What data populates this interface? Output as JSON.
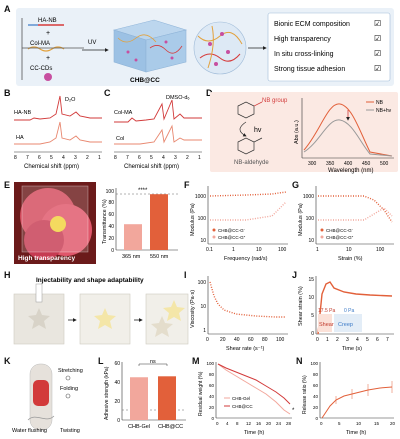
{
  "panels": {
    "A": {
      "label": "A",
      "reagents": [
        "HA-NB",
        "Col-MA",
        "CC-CDs"
      ],
      "plus": "+",
      "uv": "UV",
      "product": "CHB@CC",
      "features": [
        "Bionic ECM composition",
        "High transparency",
        "In situ cross-linking",
        "Strong tissue adhesion"
      ],
      "check": "☑"
    },
    "B": {
      "label": "B",
      "top_label": "HA-NB",
      "bottom_label": "HA",
      "peak": "D₂O",
      "xlabel": "Chemical shift (ppm)",
      "ticks": [
        "8",
        "7",
        "6",
        "5",
        "4",
        "3",
        "2",
        "1"
      ]
    },
    "C": {
      "label": "C",
      "top_label": "Col-MA",
      "bottom_label": "Col",
      "peak": "DMSO-d₆",
      "xlabel": "Chemical shift (ppm)",
      "ticks": [
        "8",
        "7",
        "6",
        "5",
        "4",
        "3",
        "2",
        "1"
      ]
    },
    "D": {
      "label": "D",
      "group_top": "NB group",
      "hv": "hv",
      "group_bottom": "NB-aldehyde",
      "ylabel": "Abs (a.u.)",
      "xlabel": "Wavelength (nm)",
      "ticks": [
        "300",
        "350",
        "400",
        "450",
        "500"
      ],
      "legend": [
        "NB",
        "NB+hv"
      ]
    },
    "E": {
      "label": "E",
      "photo_text": "High transparency",
      "ylabel": "Transmittance (%)",
      "categories": [
        "365 nm",
        "550 nm"
      ],
      "sig": "****",
      "yticks": [
        "0",
        "20",
        "40",
        "60",
        "80",
        "100"
      ]
    },
    "F": {
      "label": "F",
      "ylabel": "Modulus (Pa)",
      "xlabel": "Frequency (rad/s)",
      "legend": [
        "CHB@CC-G′",
        "CHB@CC-G″"
      ],
      "xticks": [
        "0.1",
        "1",
        "10",
        "100"
      ],
      "yticks": [
        "1000",
        "100",
        "10"
      ]
    },
    "G": {
      "label": "G",
      "ylabel": "Modulus (Pa)",
      "xlabel": "Strain (%)",
      "legend": [
        "CHB@CC-G′",
        "CHB@CC-G″"
      ],
      "xticks": [
        "1",
        "10",
        "100"
      ],
      "yticks": [
        "1000",
        "100",
        "10"
      ]
    },
    "H": {
      "label": "H",
      "caption": "Injectability and shape adaptability"
    },
    "I": {
      "label": "I",
      "ylabel": "Viscosity (Pa·s)",
      "xlabel": "Shear rate (s⁻¹)",
      "xticks": [
        "0",
        "20",
        "40",
        "60",
        "80",
        "100"
      ],
      "yticks": [
        "100",
        "10",
        "1"
      ]
    },
    "J": {
      "label": "J",
      "ylabel": "Shear strain (%)",
      "xlabel": "Time (s)",
      "ann1": "17.5 Pa",
      "ann2": "0 Pa",
      "shear": "Shear",
      "creep": "Creep",
      "xticks": [
        "0",
        "1",
        "2",
        "3",
        "4",
        "5",
        "6",
        "7"
      ],
      "yticks": [
        "0",
        "5",
        "10",
        "15"
      ]
    },
    "K": {
      "label": "K",
      "stretching": "Stretching",
      "folding": "Folding",
      "water": "Water flushing",
      "twisting": "Twisting"
    },
    "L": {
      "label": "L",
      "ylabel": "Adhesive strength (kPa)",
      "categories": [
        "CHB-Gel",
        "CHB@CC"
      ],
      "ns": "ns",
      "yticks": [
        "0",
        "20",
        "40",
        "60"
      ]
    },
    "M": {
      "label": "M",
      "ylabel": "Residual weight (%)",
      "xlabel": "Time (h)",
      "legend": [
        "CHB-Gel",
        "CHB@CC"
      ],
      "sig": "*",
      "xticks": [
        "0",
        "4",
        "8",
        "12",
        "16",
        "20",
        "24",
        "28"
      ],
      "yticks": [
        "0",
        "20",
        "40",
        "60",
        "80",
        "100"
      ]
    },
    "N": {
      "label": "N",
      "ylabel": "Release ratio (%)",
      "xlabel": "Time (h)",
      "xticks": [
        "0",
        "5",
        "10",
        "15",
        "20"
      ],
      "yticks": [
        "0",
        "20",
        "40",
        "60",
        "80",
        "100"
      ]
    }
  },
  "colors": {
    "red": "#c0392b",
    "salmon": "#e8876f",
    "orange": "#e2603a",
    "gray": "#666666",
    "lightblue": "#eaf1f8"
  },
  "chart_data": [
    {
      "type": "bar",
      "panel": "E",
      "categories": [
        "365 nm",
        "550 nm"
      ],
      "values": [
        43,
        93
      ],
      "ylim": [
        0,
        100
      ]
    },
    {
      "type": "line",
      "panel": "F",
      "xscale": "log",
      "series": [
        {
          "name": "CHB@CC-G′",
          "x": [
            0.1,
            1,
            10,
            100
          ],
          "values": [
            1000,
            1050,
            1100,
            1200
          ]
        },
        {
          "name": "CHB@CC-G″",
          "x": [
            0.1,
            1,
            10,
            100
          ],
          "values": [
            60,
            60,
            70,
            300
          ]
        }
      ]
    },
    {
      "type": "line",
      "panel": "G",
      "xscale": "log",
      "series": [
        {
          "name": "CHB@CC-G′",
          "x": [
            1,
            10,
            60,
            100,
            200
          ],
          "values": [
            1000,
            1000,
            950,
            500,
            100
          ]
        },
        {
          "name": "CHB@CC-G″",
          "x": [
            1,
            10,
            60,
            100,
            200
          ],
          "values": [
            60,
            60,
            100,
            300,
            200
          ]
        }
      ]
    },
    {
      "type": "line",
      "panel": "I",
      "x": [
        0,
        5,
        10,
        20,
        40,
        60,
        80,
        100
      ],
      "values": [
        80,
        30,
        18,
        10,
        6,
        5,
        4,
        3.5
      ]
    },
    {
      "type": "line",
      "panel": "J",
      "x": [
        0,
        0.5,
        1,
        1.5,
        2,
        3,
        4,
        5,
        6,
        7
      ],
      "values": [
        0,
        10,
        14,
        15,
        12,
        11,
        10.5,
        10.2,
        10,
        10
      ]
    },
    {
      "type": "bar",
      "panel": "L",
      "categories": [
        "CHB-Gel",
        "CHB@CC"
      ],
      "values": [
        45,
        46
      ],
      "ylim": [
        0,
        60
      ]
    },
    {
      "type": "line",
      "panel": "M",
      "x": [
        0,
        2,
        4,
        8,
        12,
        16,
        20,
        24,
        28
      ],
      "series": [
        {
          "name": "CHB-Gel",
          "values": [
            100,
            90,
            80,
            70,
            60,
            50,
            40,
            25,
            8
          ]
        },
        {
          "name": "CHB@CC",
          "values": [
            100,
            92,
            85,
            77,
            70,
            60,
            50,
            38,
            22
          ]
        }
      ]
    },
    {
      "type": "line",
      "panel": "N",
      "x": [
        0,
        1,
        2,
        4,
        6,
        8,
        10,
        12,
        16,
        20
      ],
      "values": [
        0,
        10,
        20,
        30,
        35,
        40,
        44,
        47,
        50,
        52
      ]
    }
  ]
}
